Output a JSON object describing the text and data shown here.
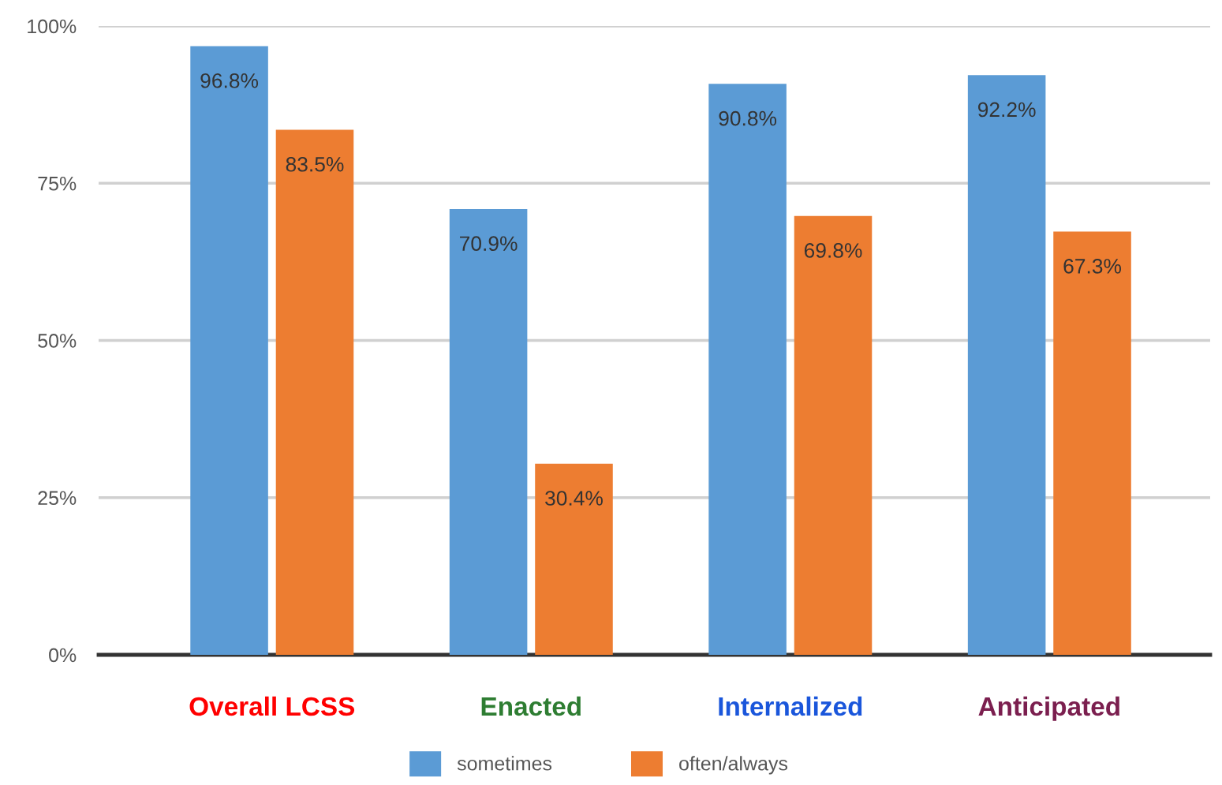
{
  "chart_data": {
    "type": "bar",
    "categories": [
      "Overall LCSS",
      "Enacted",
      "Internalized",
      "Anticipated"
    ],
    "series": [
      {
        "name": "sometimes",
        "color": "#5b9bd5",
        "values": [
          96.8,
          70.9,
          90.8,
          92.2
        ],
        "value_labels": [
          "96.8%",
          "70.9%",
          "90.8%",
          "92.2%"
        ]
      },
      {
        "name": "often/always",
        "color": "#ed7d31",
        "values": [
          83.5,
          30.4,
          69.8,
          67.3
        ],
        "value_labels": [
          "83.5%",
          "30.4%",
          "69.8%",
          "67.3%"
        ]
      }
    ],
    "ylim": [
      0,
      100
    ],
    "yticks": [
      {
        "value": 0,
        "label": "0%"
      },
      {
        "value": 25,
        "label": "25%"
      },
      {
        "value": 50,
        "label": "50%"
      },
      {
        "value": 75,
        "label": "75%"
      },
      {
        "value": 100,
        "label": "100%"
      }
    ],
    "grid": "y",
    "legend": "bottom"
  }
}
